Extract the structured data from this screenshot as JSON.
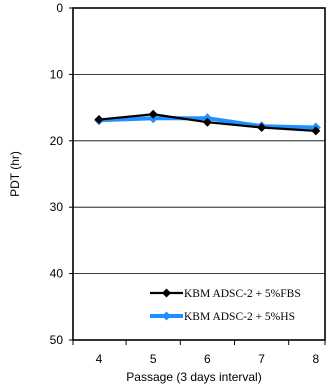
{
  "chart_data": {
    "type": "line",
    "title": "",
    "xlabel": "Passage (3 days interval)",
    "ylabel": "PDT (hr)",
    "categories": [
      "4",
      "5",
      "6",
      "7",
      "8"
    ],
    "ylim": [
      0,
      50
    ],
    "y_inverted": true,
    "yticks": [
      "0",
      "10",
      "20",
      "30",
      "40",
      "50"
    ],
    "grid": "horizontal",
    "legend_position": "bottom-right",
    "series": [
      {
        "name": "KBM  ADSC-2 + 5%FBS",
        "color": "#000000",
        "marker": "diamond",
        "values": [
          16.8,
          16.0,
          17.2,
          18.0,
          18.5
        ]
      },
      {
        "name": "KBM  ADSC-2 + 5%HS",
        "color": "#1e90ff",
        "marker": "diamond",
        "values": [
          16.9,
          16.6,
          16.6,
          17.8,
          18.0
        ]
      }
    ]
  }
}
